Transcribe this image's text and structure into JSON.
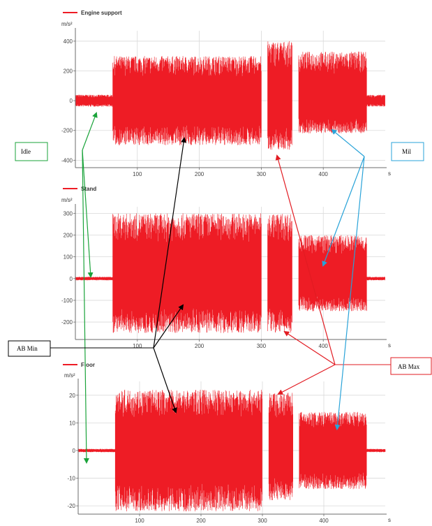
{
  "colors": {
    "signal": "#ee1c25",
    "axis": "#6b6b6b",
    "grid": "#d9d9d9",
    "idle": "#1aa33a",
    "ab_min": "#000000",
    "ab_max": "#e21b22",
    "mil": "#29a3d8"
  },
  "chart_data": [
    {
      "type": "line",
      "series": [
        {
          "name": "Engine support",
          "envelope": [
            {
              "x": [
                0,
                60
              ],
              "y": [
                -40,
                40
              ]
            },
            {
              "x": [
                60,
                300
              ],
              "y": [
                -300,
                300
              ]
            },
            {
              "x": [
                310,
                350
              ],
              "y": [
                -330,
                400
              ]
            },
            {
              "x": [
                360,
                470
              ],
              "y": [
                -220,
                330
              ]
            },
            {
              "x": [
                470,
                500
              ],
              "y": [
                -40,
                40
              ]
            }
          ]
        }
      ],
      "ylabel": "m/s²",
      "xlabel": "s",
      "xticks": [
        "100",
        "200",
        "300",
        "400"
      ],
      "yticks": [
        "400",
        "200",
        "0",
        "-200",
        "-400"
      ],
      "xlim": [
        0,
        500
      ],
      "ylim": [
        -450,
        470
      ]
    },
    {
      "type": "line",
      "series": [
        {
          "name": "Stand",
          "envelope": [
            {
              "x": [
                0,
                60
              ],
              "y": [
                -8,
                8
              ]
            },
            {
              "x": [
                60,
                300
              ],
              "y": [
                -250,
                300
              ]
            },
            {
              "x": [
                310,
                350
              ],
              "y": [
                -250,
                300
              ]
            },
            {
              "x": [
                360,
                470
              ],
              "y": [
                -150,
                200
              ]
            },
            {
              "x": [
                470,
                500
              ],
              "y": [
                -8,
                8
              ]
            }
          ]
        }
      ],
      "ylabel": "m/s²",
      "xlabel": "s",
      "xticks": [
        "100",
        "200",
        "300",
        "400"
      ],
      "yticks": [
        "300",
        "200",
        "100",
        "0",
        "-100",
        "-200"
      ],
      "xlim": [
        0,
        500
      ],
      "ylim": [
        -280,
        330
      ]
    },
    {
      "type": "line",
      "series": [
        {
          "name": "Floor",
          "envelope": [
            {
              "x": [
                0,
                60
              ],
              "y": [
                -0.6,
                0.6
              ]
            },
            {
              "x": [
                60,
                300
              ],
              "y": [
                -22,
                22
              ]
            },
            {
              "x": [
                310,
                350
              ],
              "y": [
                -18,
                21
              ]
            },
            {
              "x": [
                360,
                470
              ],
              "y": [
                -14,
                14
              ]
            },
            {
              "x": [
                470,
                500
              ],
              "y": [
                -0.6,
                0.6
              ]
            }
          ]
        }
      ],
      "ylabel": "m/s²",
      "xlabel": "s",
      "xticks": [
        "100",
        "200",
        "300",
        "400"
      ],
      "yticks": [
        "20",
        "10",
        "0",
        "-10",
        "-20"
      ],
      "xlim": [
        0,
        500
      ],
      "ylim": [
        -23,
        25
      ]
    }
  ],
  "callouts": {
    "idle": "Idle",
    "ab_min": "AB Min",
    "ab_max": "AB Max",
    "mil": "Mil"
  }
}
